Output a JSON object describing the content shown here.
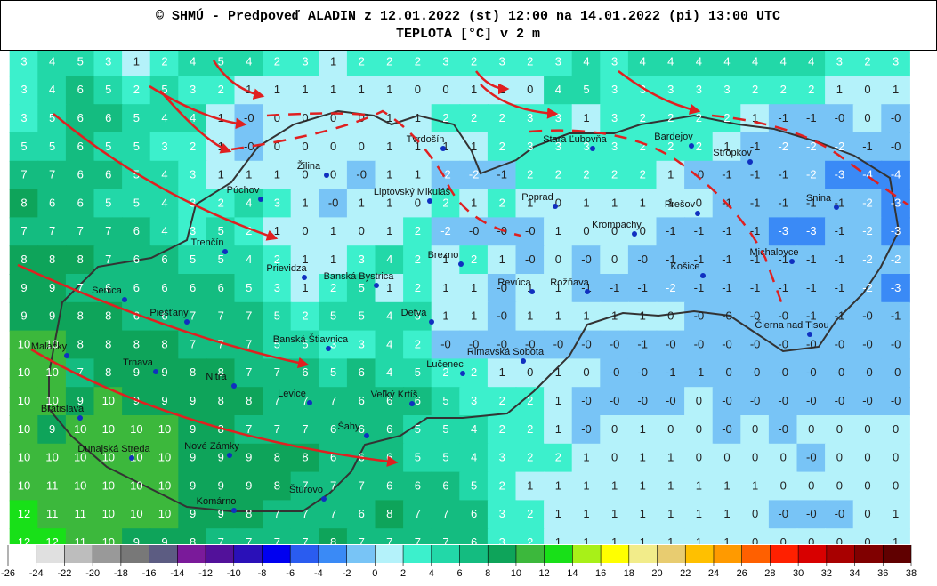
{
  "header": {
    "title": "© SHMÚ - Predpoveď ALADIN z 12.01.2022 (st) 12:00 na 14.01.2022 (pi) 13:00 UTC",
    "subtitle": "TEPLOTA [°C] v 2 m"
  },
  "grid": [
    [
      3,
      4,
      5,
      3,
      1,
      2,
      4,
      5,
      4,
      2,
      3,
      1,
      2,
      2,
      2,
      3,
      2,
      3,
      2,
      3,
      4,
      3,
      4,
      4,
      4,
      4,
      4,
      4,
      4,
      3,
      2,
      3
    ],
    [
      3,
      4,
      6,
      5,
      2,
      5,
      3,
      2,
      1,
      1,
      1,
      1,
      1,
      1,
      0,
      0,
      1,
      1,
      0,
      4,
      5,
      3,
      3,
      3,
      3,
      3,
      2,
      2,
      2,
      1,
      0,
      1
    ],
    [
      3,
      5,
      6,
      6,
      5,
      4,
      4,
      1,
      "-0",
      0,
      0,
      0,
      0,
      1,
      1,
      2,
      2,
      2,
      3,
      3,
      1,
      3,
      2,
      2,
      2,
      2,
      1,
      -1,
      -1,
      "-0",
      0,
      "-0"
    ],
    [
      5,
      5,
      6,
      5,
      5,
      3,
      2,
      1,
      "-0",
      0,
      0,
      0,
      0,
      1,
      1,
      1,
      1,
      2,
      3,
      3,
      3,
      3,
      2,
      2,
      2,
      1,
      -1,
      -2,
      -2,
      -2,
      -1,
      "-0"
    ],
    [
      7,
      7,
      6,
      6,
      5,
      4,
      3,
      1,
      1,
      1,
      0,
      0,
      "-0",
      1,
      1,
      -2,
      -2,
      -1,
      2,
      2,
      2,
      2,
      2,
      1,
      "-0",
      -1,
      -1,
      -1,
      -2,
      -3,
      -4,
      -4
    ],
    [
      8,
      6,
      6,
      5,
      5,
      4,
      3,
      2,
      4,
      3,
      1,
      "-0",
      1,
      1,
      0,
      2,
      1,
      2,
      1,
      0,
      1,
      1,
      1,
      1,
      0,
      -1,
      -1,
      -1,
      -1,
      -1,
      -2,
      -3
    ],
    [
      7,
      7,
      7,
      7,
      6,
      4,
      3,
      5,
      2,
      1,
      0,
      1,
      0,
      1,
      2,
      -2,
      "-0",
      "-0",
      "-0",
      1,
      0,
      0,
      0,
      -1,
      -1,
      -1,
      -1,
      -3,
      -3,
      -1,
      -2,
      -3
    ],
    [
      8,
      8,
      8,
      7,
      6,
      6,
      5,
      5,
      4,
      2,
      1,
      1,
      3,
      4,
      2,
      1,
      2,
      1,
      "-0",
      0,
      "-0",
      0,
      "-0",
      -1,
      -1,
      -1,
      -1,
      -1,
      -1,
      -1,
      -2,
      -2
    ],
    [
      9,
      9,
      7,
      6,
      6,
      6,
      6,
      6,
      5,
      3,
      1,
      2,
      5,
      1,
      2,
      1,
      1,
      "-0",
      1,
      1,
      -1,
      -1,
      -1,
      -2,
      -1,
      -1,
      -1,
      -1,
      -1,
      -1,
      -2,
      -3
    ],
    [
      9,
      9,
      8,
      8,
      6,
      6,
      7,
      7,
      7,
      5,
      2,
      5,
      5,
      4,
      5,
      1,
      1,
      "-0",
      1,
      1,
      1,
      1,
      1,
      0,
      "-0",
      "-0",
      "-0",
      "-0",
      -1,
      -1,
      "-0",
      -1
    ],
    [
      10,
      10,
      8,
      8,
      8,
      8,
      7,
      7,
      7,
      5,
      5,
      3,
      3,
      4,
      2,
      "-0",
      "-0",
      "-0",
      "-0",
      "-0",
      "-0",
      "-0",
      -1,
      "-0",
      "-0",
      "-0",
      "-0",
      "-0",
      "-0",
      "-0",
      "-0",
      "-0"
    ],
    [
      10,
      10,
      7,
      8,
      9,
      9,
      8,
      8,
      7,
      7,
      6,
      5,
      6,
      4,
      5,
      2,
      2,
      1,
      0,
      1,
      0,
      "-0",
      "-0",
      -1,
      -1,
      "-0",
      "-0",
      "-0",
      "-0",
      "-0",
      "-0",
      "-0"
    ],
    [
      10,
      10,
      9,
      10,
      9,
      9,
      9,
      8,
      8,
      7,
      7,
      7,
      6,
      6,
      6,
      5,
      3,
      2,
      2,
      1,
      "-0",
      "-0",
      "-0",
      "-0",
      0,
      "-0",
      "-0",
      "-0",
      "-0",
      "-0",
      "-0",
      "-0"
    ],
    [
      10,
      9,
      10,
      10,
      10,
      10,
      9,
      8,
      7,
      7,
      7,
      6,
      6,
      6,
      5,
      5,
      4,
      2,
      2,
      1,
      "-0",
      0,
      1,
      0,
      0,
      "-0",
      0,
      "-0",
      0,
      0,
      0,
      0
    ],
    [
      10,
      10,
      10,
      10,
      10,
      10,
      9,
      9,
      9,
      8,
      8,
      6,
      6,
      6,
      5,
      5,
      4,
      3,
      2,
      2,
      1,
      0,
      1,
      1,
      0,
      0,
      0,
      0,
      "-0",
      0,
      0,
      0
    ],
    [
      10,
      11,
      10,
      10,
      10,
      10,
      9,
      9,
      9,
      8,
      7,
      7,
      7,
      6,
      6,
      6,
      5,
      2,
      1,
      1,
      1,
      1,
      1,
      1,
      1,
      1,
      1,
      0,
      0,
      0,
      0,
      0
    ],
    [
      12,
      11,
      11,
      10,
      10,
      10,
      9,
      9,
      8,
      7,
      7,
      7,
      6,
      8,
      7,
      7,
      6,
      3,
      2,
      1,
      1,
      1,
      1,
      1,
      1,
      1,
      0,
      "-0",
      "-0",
      "-0",
      0,
      1
    ],
    [
      12,
      12,
      11,
      10,
      9,
      9,
      8,
      7,
      7,
      7,
      7,
      8,
      7,
      7,
      7,
      7,
      6,
      3,
      2,
      1,
      1,
      1,
      1,
      1,
      1,
      1,
      0,
      0,
      0,
      0,
      0,
      1
    ]
  ],
  "cities": [
    "Tvrdošín",
    "Stará Ľubovňa",
    "Bardejov",
    "Stropkov",
    "Žilina",
    "Púchov",
    "Liptovský Mikuláš",
    "Poprad",
    "Prešov",
    "Snina",
    "Trenčín",
    "Krompachy",
    "Michalovce",
    "Brezno",
    "Prievidza",
    "Košice",
    "Banská Bystrica",
    "Revúca",
    "Rožňava",
    "Senica",
    "Piešťany",
    "Detva",
    "Čierna nad Tisou",
    "Banská Štiavnica",
    "Rimavská Sobota",
    "Malacky",
    "Trnava",
    "Lučenec",
    "Nitra",
    "Levice",
    "Veľký Krtíš",
    "Bratislava",
    "Šahy",
    "Nové Zámky",
    "Dunajská Streda",
    "Štúrovo",
    "Komárno"
  ],
  "legend": {
    "labels": [
      -26,
      -24,
      -22,
      -20,
      -18,
      -16,
      -14,
      -12,
      -10,
      -8,
      -6,
      -4,
      -2,
      0,
      2,
      4,
      6,
      8,
      10,
      12,
      14,
      16,
      18,
      20,
      22,
      24,
      26,
      28,
      30,
      32,
      34,
      36,
      38
    ],
    "colors": [
      "#ffffff",
      "#e0e0e0",
      "#bdbdbd",
      "#999999",
      "#787878",
      "#5c5c82",
      "#7a1a9a",
      "#52119a",
      "#2a10b8",
      "#0000f0",
      "#2a5cf0",
      "#3a8af6",
      "#78c4f6",
      "#b4f2fa",
      "#3cf0cc",
      "#22d8a8",
      "#14bc80",
      "#0ea45a",
      "#3cb83c",
      "#18e018",
      "#a8f018",
      "#ffff00",
      "#f2ec8a",
      "#e8cc70",
      "#ffc000",
      "#ff9a00",
      "#ff6000",
      "#ff2000",
      "#d80000",
      "#a80000",
      "#800000",
      "#600000"
    ]
  }
}
